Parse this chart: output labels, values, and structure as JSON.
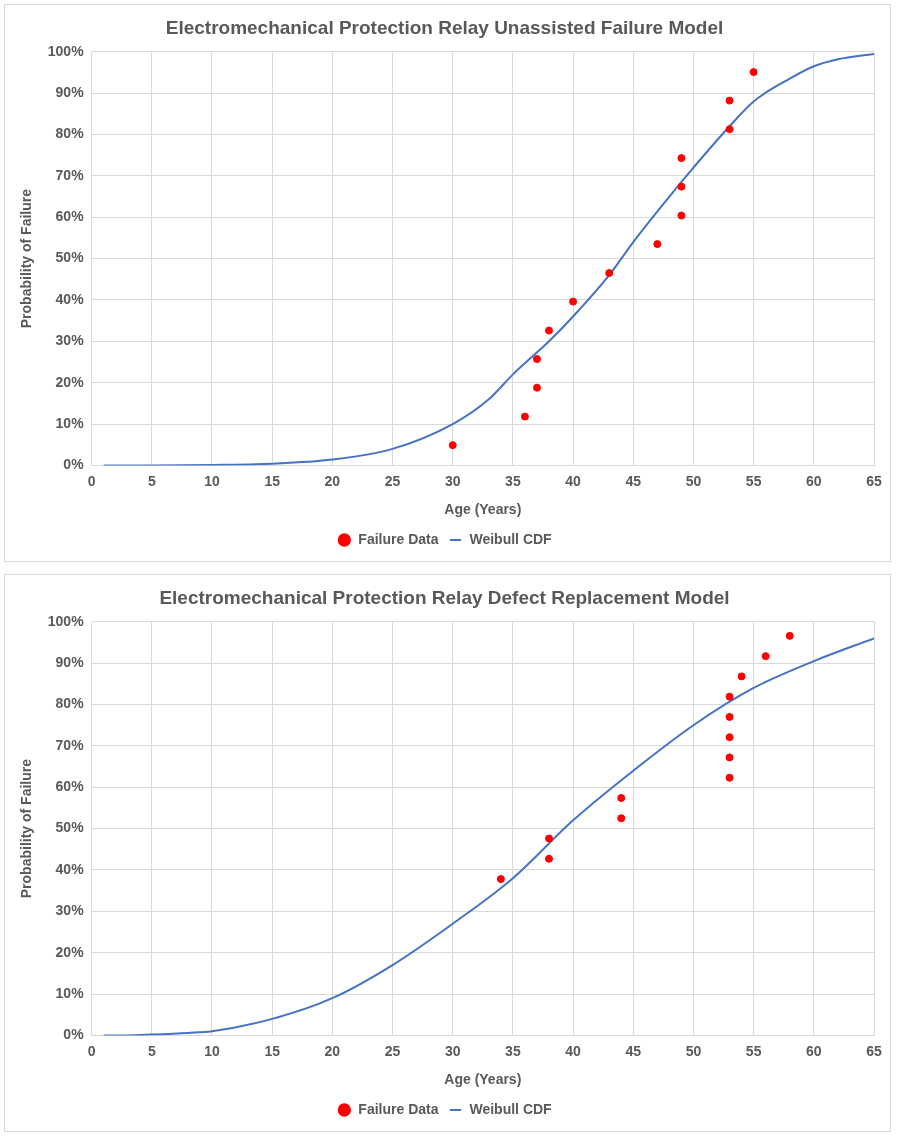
{
  "chart_data": [
    {
      "type": "scatter",
      "title": "Electromechanical Protection Relay Unassisted Failure Model",
      "xlabel": "Age (Years)",
      "ylabel": "Probability of Failure",
      "xlim": [
        0,
        65
      ],
      "xticks": [
        0,
        5,
        10,
        15,
        20,
        25,
        30,
        35,
        40,
        45,
        50,
        55,
        60,
        65
      ],
      "ylim": [
        0,
        100
      ],
      "yticks": [
        {
          "value": 0,
          "label": "0%"
        },
        {
          "value": 10,
          "label": "10%"
        },
        {
          "value": 20,
          "label": "20%"
        },
        {
          "value": 30,
          "label": "30%"
        },
        {
          "value": 40,
          "label": "40%"
        },
        {
          "value": 50,
          "label": "50%"
        },
        {
          "value": 60,
          "label": "60%"
        },
        {
          "value": 70,
          "label": "70%"
        },
        {
          "value": 80,
          "label": "80%"
        },
        {
          "value": 90,
          "label": "90%"
        },
        {
          "value": 100,
          "label": "100%"
        }
      ],
      "grid": true,
      "legend": "bottom",
      "series": [
        {
          "name": "Failure Data",
          "marker": "circle",
          "color": "#ff0000",
          "x": [
            30,
            36,
            37,
            37,
            38,
            40,
            43,
            47,
            49,
            49,
            49,
            53,
            53,
            55
          ],
          "values": [
            4.9,
            11.8,
            18.8,
            25.7,
            32.6,
            39.6,
            46.5,
            53.5,
            60.4,
            67.4,
            74.3,
            81.3,
            88.2,
            95.1
          ]
        },
        {
          "name": "Weibull CDF",
          "type": "line",
          "color": "#4472c4",
          "x": [
            1,
            5,
            10,
            15,
            20,
            25,
            30,
            33,
            35,
            38,
            40,
            43,
            45,
            48,
            50,
            53,
            55,
            58,
            60,
            62,
            65
          ],
          "values": [
            0,
            0,
            0.1,
            0.4,
            1.4,
            4,
            10,
            16,
            22,
            30,
            36,
            46,
            54,
            65,
            72,
            82,
            88,
            93.5,
            96.5,
            98.2,
            99.5
          ]
        }
      ]
    },
    {
      "type": "scatter",
      "title": "Electromechanical Protection Relay Defect Replacement Model",
      "xlabel": "Age (Years)",
      "ylabel": "Probability of Failure",
      "xlim": [
        0,
        65
      ],
      "xticks": [
        0,
        5,
        10,
        15,
        20,
        25,
        30,
        35,
        40,
        45,
        50,
        55,
        60,
        65
      ],
      "ylim": [
        0,
        100
      ],
      "yticks": [
        {
          "value": 0,
          "label": "0%"
        },
        {
          "value": 10,
          "label": "10%"
        },
        {
          "value": 20,
          "label": "20%"
        },
        {
          "value": 30,
          "label": "30%"
        },
        {
          "value": 40,
          "label": "40%"
        },
        {
          "value": 50,
          "label": "50%"
        },
        {
          "value": 60,
          "label": "60%"
        },
        {
          "value": 70,
          "label": "70%"
        },
        {
          "value": 80,
          "label": "80%"
        },
        {
          "value": 90,
          "label": "90%"
        },
        {
          "value": 100,
          "label": "100%"
        }
      ],
      "grid": true,
      "legend": "bottom",
      "series": [
        {
          "name": "Failure Data",
          "marker": "circle",
          "color": "#ff0000",
          "x": [
            34,
            38,
            38,
            44,
            44,
            53,
            53,
            53,
            53,
            53,
            54,
            56,
            58
          ],
          "values": [
            37.8,
            42.7,
            47.6,
            52.5,
            57.4,
            62.3,
            67.2,
            72.1,
            77,
            81.9,
            86.8,
            91.7,
            96.6
          ]
        },
        {
          "name": "Weibull CDF",
          "type": "line",
          "color": "#4472c4",
          "x": [
            1,
            3,
            5,
            8,
            10,
            15,
            20,
            25,
            30,
            35,
            40,
            45,
            50,
            55,
            60,
            65
          ],
          "values": [
            0,
            0,
            0.2,
            0.6,
            1,
            4,
            9,
            17,
            27,
            38,
            52,
            64,
            75,
            84,
            90.5,
            96
          ]
        }
      ]
    }
  ]
}
